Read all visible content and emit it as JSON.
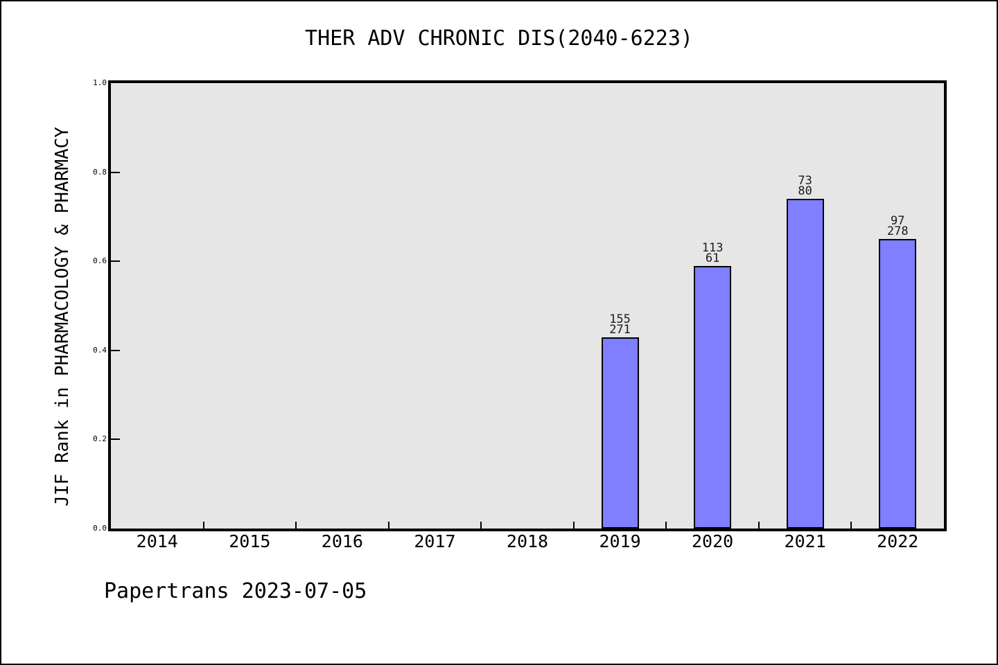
{
  "chart_data": {
    "type": "bar",
    "title": "THER ADV CHRONIC DIS(2040-6223)",
    "ylabel": "JIF Rank in PHARMACOLOGY & PHARMACY",
    "xlabel": "",
    "categories": [
      "2014",
      "2015",
      "2016",
      "2017",
      "2018",
      "2019",
      "2020",
      "2021",
      "2022"
    ],
    "values": [
      null,
      null,
      null,
      null,
      null,
      0.43,
      0.59,
      0.74,
      0.65
    ],
    "bar_labels": [
      null,
      null,
      null,
      null,
      null,
      [
        "155",
        "271"
      ],
      [
        "113",
        "61"
      ],
      [
        "73",
        "80"
      ],
      [
        "97",
        "278"
      ]
    ],
    "yticks": [
      "0.0",
      "0.2",
      "0.4",
      "0.6",
      "0.8",
      "1.0"
    ],
    "ylim": [
      0.0,
      1.0
    ],
    "xlim": [
      2013.5,
      2022.5
    ],
    "grid": false,
    "legend": null,
    "colors": {
      "bar_fill": "#7f7fff",
      "bar_border": "#000000",
      "plot_background": "#e6e6e6",
      "page_background": "#ffffff",
      "frame": "#000000"
    }
  },
  "footer": {
    "text": "Papertrans 2023-07-05"
  }
}
